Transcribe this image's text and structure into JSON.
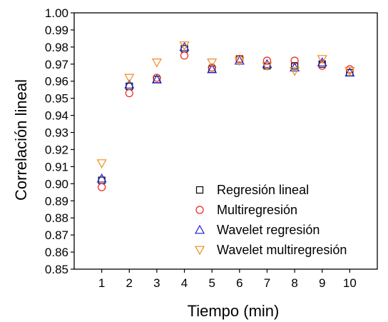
{
  "chart_data": {
    "type": "scatter",
    "title": "",
    "xlabel": "Tiempo (min)",
    "ylabel": "Correlación lineal",
    "xlim": [
      0,
      11
    ],
    "ylim": [
      0.85,
      1.0
    ],
    "x_ticks": [
      "1",
      "2",
      "3",
      "4",
      "5",
      "6",
      "7",
      "8",
      "9",
      "10"
    ],
    "y_ticks": [
      "0.85",
      "0.86",
      "0.87",
      "0.88",
      "0.89",
      "0.90",
      "0.91",
      "0.92",
      "0.93",
      "0.94",
      "0.95",
      "0.96",
      "0.97",
      "0.98",
      "0.99",
      "1.00"
    ],
    "grid": false,
    "legend_position": "bottom-right",
    "series": [
      {
        "name": "Regresión lineal",
        "marker": "square",
        "color": "#000000",
        "x": [
          1,
          2,
          3,
          4,
          5,
          6,
          7,
          8,
          9,
          10
        ],
        "y": [
          0.902,
          0.957,
          0.961,
          0.979,
          0.967,
          0.973,
          0.969,
          0.969,
          0.97,
          0.965
        ]
      },
      {
        "name": "Multiregresión",
        "marker": "circle",
        "color": "#e8231c",
        "x": [
          1,
          2,
          3,
          4,
          5,
          6,
          7,
          8,
          9,
          10
        ],
        "y": [
          0.898,
          0.953,
          0.962,
          0.975,
          0.968,
          0.973,
          0.972,
          0.972,
          0.969,
          0.967
        ]
      },
      {
        "name": "Wavelet regresión",
        "marker": "triangle-up",
        "color": "#1f1fd6",
        "x": [
          1,
          2,
          3,
          4,
          5,
          6,
          7,
          8,
          9,
          10
        ],
        "y": [
          0.903,
          0.958,
          0.961,
          0.98,
          0.967,
          0.972,
          0.97,
          0.968,
          0.971,
          0.965
        ]
      },
      {
        "name": "Wavelet multiregresión",
        "marker": "triangle-down",
        "color": "#f08a1c",
        "x": [
          1,
          2,
          3,
          4,
          5,
          6,
          7,
          8,
          9,
          10
        ],
        "y": [
          0.912,
          0.962,
          0.971,
          0.981,
          0.971,
          0.972,
          0.969,
          0.966,
          0.973,
          0.966
        ]
      }
    ]
  }
}
